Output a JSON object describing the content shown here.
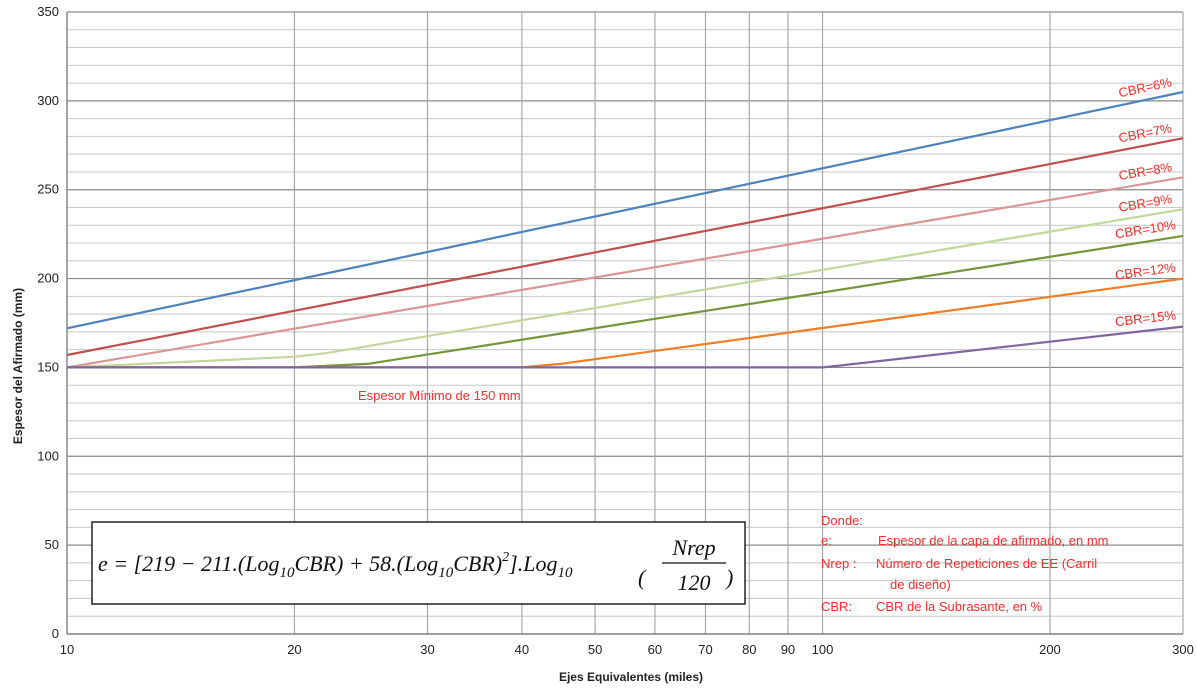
{
  "chart_data": {
    "type": "line",
    "xlabel": "Ejes Equivalentes (miles)",
    "ylabel": "Espesor del Afirmado (mm)",
    "x_scale": "log",
    "xlim": [
      10,
      300
    ],
    "ylim": [
      0,
      350
    ],
    "x_ticks": [
      10,
      20,
      30,
      40,
      50,
      60,
      70,
      80,
      90,
      100,
      200,
      300
    ],
    "y_ticks": [
      0,
      50,
      100,
      150,
      200,
      250,
      300,
      350
    ],
    "grid": true,
    "series": [
      {
        "name": "CBR=6%",
        "color": "#4f81bd",
        "x": [
          10,
          300
        ],
        "y": [
          172,
          305
        ]
      },
      {
        "name": "CBR=7%",
        "color": "#c0504d",
        "x": [
          10,
          300
        ],
        "y": [
          157,
          279
        ]
      },
      {
        "name": "CBR=8%",
        "color": "#d99694",
        "x": [
          10,
          300
        ],
        "y": [
          150,
          257
        ]
      },
      {
        "name": "CBR=9%",
        "color": "#c3d69b",
        "x": [
          10,
          20,
          22,
          300
        ],
        "y": [
          150,
          156,
          158,
          239
        ]
      },
      {
        "name": "CBR=10%",
        "color": "#77933c",
        "x": [
          10,
          20,
          25,
          300
        ],
        "y": [
          150,
          150,
          152,
          224
        ]
      },
      {
        "name": "CBR=12%",
        "color": "#f07e26",
        "x": [
          10,
          40,
          45,
          300
        ],
        "y": [
          150,
          150,
          152,
          200
        ]
      },
      {
        "name": "CBR=15%",
        "color": "#8064a2",
        "x": [
          10,
          100,
          105,
          300
        ],
        "y": [
          150,
          150,
          151,
          173
        ]
      }
    ],
    "annotations": {
      "min_thickness": "Espesor Mínimo de 150 mm",
      "donde": "Donde:",
      "def_e_key": "e:",
      "def_e_val": "Espesor de la capa de afirmado, en mm",
      "def_n_key": "Nrep :",
      "def_n_val": "Número de Repeticiones de EE (Carril",
      "def_n_val2": "de diseño)",
      "def_c_key": "CBR:",
      "def_c_val": "CBR de la Subrasante, en %"
    },
    "formula": {
      "lhs": "e = [219 − 211.(Log",
      "sub10": "10",
      "cbr": "CBR) + 58.(Log",
      "cbr2": "CBR)",
      "sq": "2",
      "tail": "].Log",
      "num": "Nrep",
      "den": "120"
    }
  }
}
